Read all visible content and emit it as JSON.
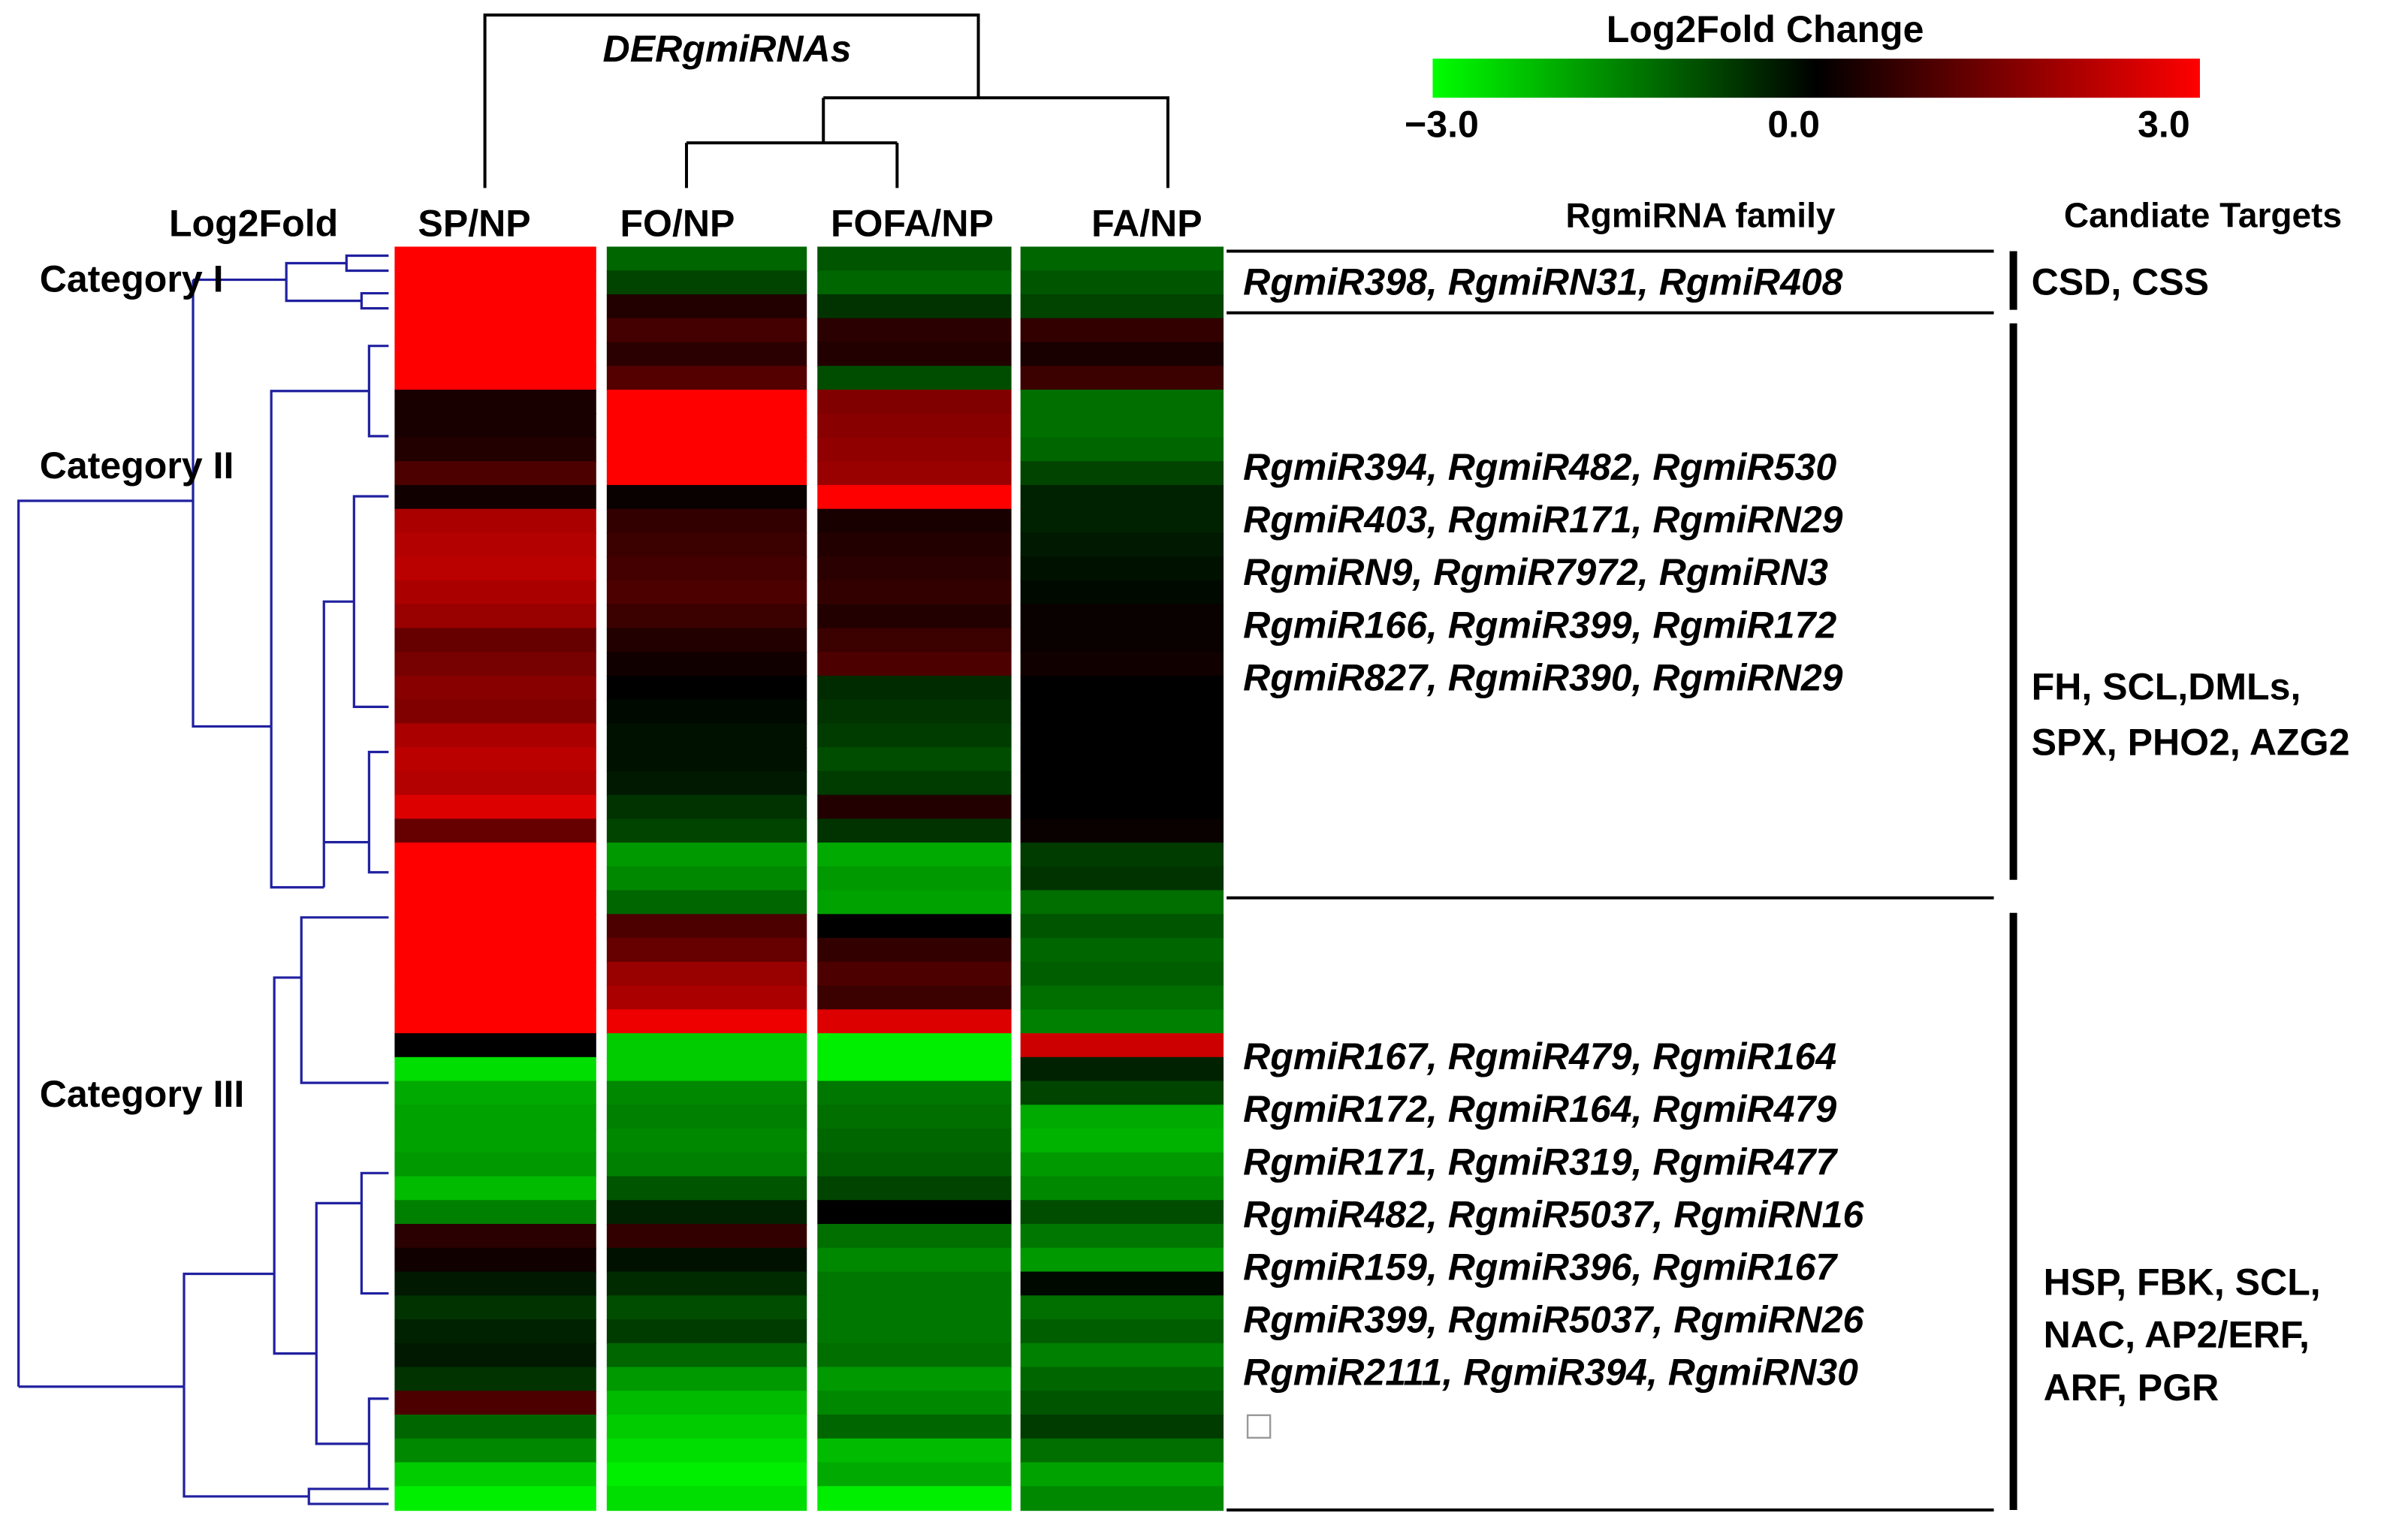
{
  "chart_data": {
    "type": "heatmap",
    "title": "DERgmiRNAs",
    "columns": [
      "SP/NP",
      "FO/NP",
      "FOFA/NP",
      "FA/NP"
    ],
    "row_axis_label": "Log2Fold",
    "colorbar": {
      "title": "Log2Fold Change",
      "min": -3.0,
      "mid": 0.0,
      "max": 3.0,
      "tick_labels": [
        "−3.0",
        "0.0",
        "3.0"
      ],
      "low_color": "#00ff00",
      "mid_color": "#000000",
      "high_color": "#ff0000"
    },
    "column_header_family": "RgmiRNA family",
    "column_header_targets": "Candiate Targets",
    "categories": [
      {
        "name": "Category I",
        "families": [
          "RgmiR398, RgmiRN31, RgmiR408"
        ],
        "targets": [
          "CSD, CSS"
        ],
        "rows": [
          [
            3.0,
            -1.2,
            -1.0,
            -1.2
          ],
          [
            3.0,
            -0.8,
            -1.2,
            -1.0
          ],
          [
            3.0,
            0.4,
            -0.6,
            -0.8
          ],
          [
            3.0,
            0.8,
            0.5,
            0.6
          ],
          [
            3.0,
            0.5,
            0.4,
            0.3
          ],
          [
            3.0,
            1.0,
            -0.9,
            0.7
          ]
        ]
      },
      {
        "name": "Category II",
        "families": [
          "RgmiR394, RgmiR482, RgmiR530",
          "RgmiR403, RgmiR171, RgmiRN29",
          "RgmiRN9, RgmiR7972, RgmiRN3",
          "RgmiR166, RgmiR399, RgmiR172",
          "RgmiR827, RgmiR390, RgmiRN29"
        ],
        "targets": [
          "FH, SCL,DMLs,",
          "SPX, PHO2, AZG2"
        ],
        "rows": [
          [
            0.3,
            3.0,
            1.5,
            -1.3
          ],
          [
            0.3,
            3.0,
            1.6,
            -1.3
          ],
          [
            0.4,
            3.0,
            1.7,
            -1.2
          ],
          [
            0.9,
            3.0,
            1.8,
            -0.8
          ],
          [
            0.2,
            0.1,
            3.0,
            -0.4
          ],
          [
            2.0,
            0.6,
            0.3,
            -0.4
          ],
          [
            2.1,
            0.7,
            0.4,
            -0.3
          ],
          [
            2.2,
            0.8,
            0.5,
            -0.2
          ],
          [
            2.0,
            0.9,
            0.6,
            -0.1
          ],
          [
            1.8,
            0.7,
            0.4,
            0.1
          ],
          [
            1.2,
            0.4,
            0.7,
            0.1
          ],
          [
            1.4,
            0.2,
            0.9,
            0.2
          ],
          [
            1.6,
            0.0,
            -0.5,
            0.0
          ],
          [
            1.5,
            -0.1,
            -0.6,
            0.0
          ],
          [
            2.0,
            -0.2,
            -0.7,
            0.0
          ],
          [
            2.2,
            -0.2,
            -0.9,
            0.0
          ],
          [
            2.1,
            -0.3,
            -0.7,
            0.0
          ],
          [
            2.6,
            -0.6,
            0.4,
            0.0
          ],
          [
            1.2,
            -0.8,
            -0.6,
            0.1
          ],
          [
            3.0,
            -1.8,
            -2.0,
            -0.7
          ],
          [
            3.0,
            -1.6,
            -1.8,
            -0.6
          ],
          [
            3.0,
            -1.2,
            -1.9,
            -1.3
          ],
          [
            3.0,
            0.9,
            0.0,
            -1.0
          ],
          [
            3.0,
            1.2,
            0.6,
            -1.2
          ],
          [
            3.0,
            1.8,
            0.9,
            -1.1
          ],
          [
            3.0,
            2.0,
            0.7,
            -1.3
          ],
          [
            3.0,
            2.8,
            2.6,
            -1.5
          ]
        ]
      },
      {
        "name": "Category III",
        "families": [
          "RgmiR167, RgmiR479, RgmiR164",
          "RgmiR172, RgmiR164, RgmiR479",
          "RgmiR171, RgmiR319, RgmiR477",
          "RgmiR482, RgmiR5037, RgmiRN16",
          "RgmiR159, RgmiR396, RgmiR167",
          "RgmiR399, RgmiR5037, RgmiRN26",
          "RgmiR2111, RgmiR394, RgmiRN30"
        ],
        "targets": [
          "HSP, FBK, SCL,",
          "NAC, AP2/ERF,",
          "ARF, PGR"
        ],
        "rows": [
          [
            0.0,
            -2.4,
            -2.8,
            2.4
          ],
          [
            -2.6,
            -2.4,
            -2.8,
            -0.4
          ],
          [
            -2.0,
            -1.6,
            -1.4,
            -0.8
          ],
          [
            -1.9,
            -1.5,
            -1.3,
            -2.0
          ],
          [
            -1.9,
            -1.6,
            -1.2,
            -2.1
          ],
          [
            -1.8,
            -1.5,
            -1.1,
            -1.8
          ],
          [
            -2.2,
            -1.0,
            -0.8,
            -1.6
          ],
          [
            -1.5,
            -0.4,
            0.0,
            -0.9
          ],
          [
            0.5,
            0.6,
            -1.3,
            -1.4
          ],
          [
            0.2,
            -0.2,
            -1.6,
            -1.8
          ],
          [
            -0.3,
            -0.5,
            -1.4,
            -0.1
          ],
          [
            -0.6,
            -0.9,
            -1.4,
            -1.3
          ],
          [
            -0.4,
            -0.7,
            -1.4,
            -1.1
          ],
          [
            -0.3,
            -1.2,
            -1.3,
            -1.5
          ],
          [
            -0.6,
            -1.8,
            -1.8,
            -1.2
          ],
          [
            0.9,
            -2.2,
            -1.6,
            -1.0
          ],
          [
            -1.2,
            -2.4,
            -1.2,
            -0.7
          ],
          [
            -1.6,
            -2.6,
            -2.2,
            -1.3
          ],
          [
            -2.4,
            -2.8,
            -2.0,
            -1.9
          ],
          [
            -2.8,
            -2.6,
            -2.8,
            -1.6
          ]
        ]
      }
    ]
  }
}
